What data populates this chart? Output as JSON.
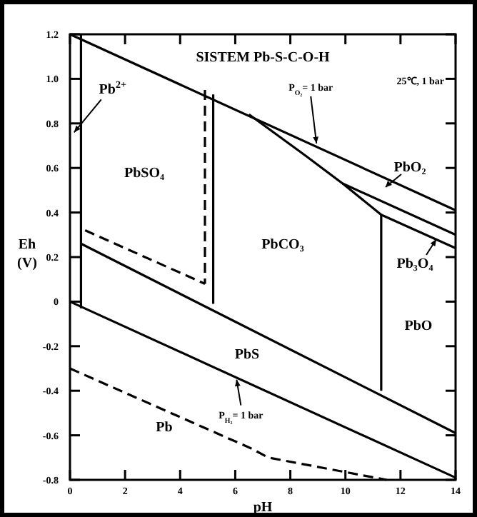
{
  "chart_data": {
    "type": "line",
    "title": "SISTEM Pb-S-C-O-H",
    "xlabel": "pH",
    "ylabel": "Eh (V)",
    "xlim": [
      0,
      14
    ],
    "ylim": [
      -0.8,
      1.2
    ],
    "xticks": [
      0,
      2,
      4,
      6,
      8,
      10,
      12,
      14
    ],
    "yticks": [
      {
        "value": -0.8,
        "label": "-0.8"
      },
      {
        "value": -0.6,
        "label": "-0.6"
      },
      {
        "value": -0.4,
        "label": "-0.4"
      },
      {
        "value": -0.2,
        "label": "-0.2"
      },
      0,
      {
        "value": 0.2,
        "label": "0.2"
      },
      {
        "value": 0.4,
        "label": "0.4"
      },
      {
        "value": 0.6,
        "label": "0.6"
      },
      {
        "value": 0.8,
        "label": "0.8"
      },
      {
        "value": 1.0,
        "label": "1.0"
      },
      {
        "value": 1.2,
        "label": "1.2"
      }
    ],
    "grid": false,
    "marker": "none",
    "series": [
      {
        "color": "#000000",
        "line_style": "solid",
        "x": [
          0,
          14
        ],
        "values": [
          1.2,
          0.41
        ]
      },
      {
        "color": "#000000",
        "line_style": "solid",
        "x": [
          0,
          14
        ],
        "values": [
          0,
          -0.79
        ]
      },
      {
        "color": "#000000",
        "line_style": "solid",
        "x": [
          0.4,
          14
        ],
        "values": [
          0.26,
          -0.59
        ]
      },
      {
        "color": "#000000",
        "line_style": "solid",
        "x": [
          0.4,
          0.4
        ],
        "values": [
          1.2,
          -0.03
        ]
      },
      {
        "color": "#000000",
        "line_style": "solid",
        "x": [
          5.2,
          5.2
        ],
        "values": [
          0.93,
          -0.01
        ]
      },
      {
        "color": "#000000",
        "line_style": "dashed",
        "x": [
          4.9,
          4.9
        ],
        "values": [
          0.95,
          0.08
        ]
      },
      {
        "color": "#000000",
        "line_style": "dashed",
        "x": [
          0.55,
          4.9
        ],
        "values": [
          0.32,
          0.08
        ]
      },
      {
        "color": "#000000",
        "line_style": "solid",
        "x": [
          6.5,
          8.5,
          9.9,
          14
        ],
        "values": [
          0.84,
          0.66,
          0.53,
          0.3
        ]
      },
      {
        "color": "#000000",
        "line_style": "solid",
        "x": [
          9.9,
          11.3,
          14
        ],
        "values": [
          0.53,
          0.39,
          0.24
        ]
      },
      {
        "color": "#000000",
        "line_style": "solid",
        "x": [
          11.3,
          11.3
        ],
        "values": [
          0.39,
          -0.4
        ]
      },
      {
        "color": "#000000",
        "line_style": "dashed",
        "x": [
          0,
          6.6,
          7.2,
          11.5
        ],
        "values": [
          -0.3,
          -0.66,
          -0.7,
          -0.8
        ]
      }
    ],
    "annotations": [
      "25℃, 1 bar",
      {
        "text": "Pb$^{2+}$",
        "x": 0.15,
        "y": 0.76
      },
      "PbSO₄",
      "PbCO₃",
      {
        "text": "P$_{O₂}$= 1 bar",
        "x": 8.95,
        "y": 0.71
      },
      "PbO₂",
      {
        "text": "Pb₃O₄",
        "x": 13.3,
        "y": 0.28
      },
      "PbO",
      "PbS",
      {
        "text": "P$_{H₂}$= 1 bar",
        "x": 6.05,
        "y": -0.35
      },
      "Pb"
    ]
  }
}
